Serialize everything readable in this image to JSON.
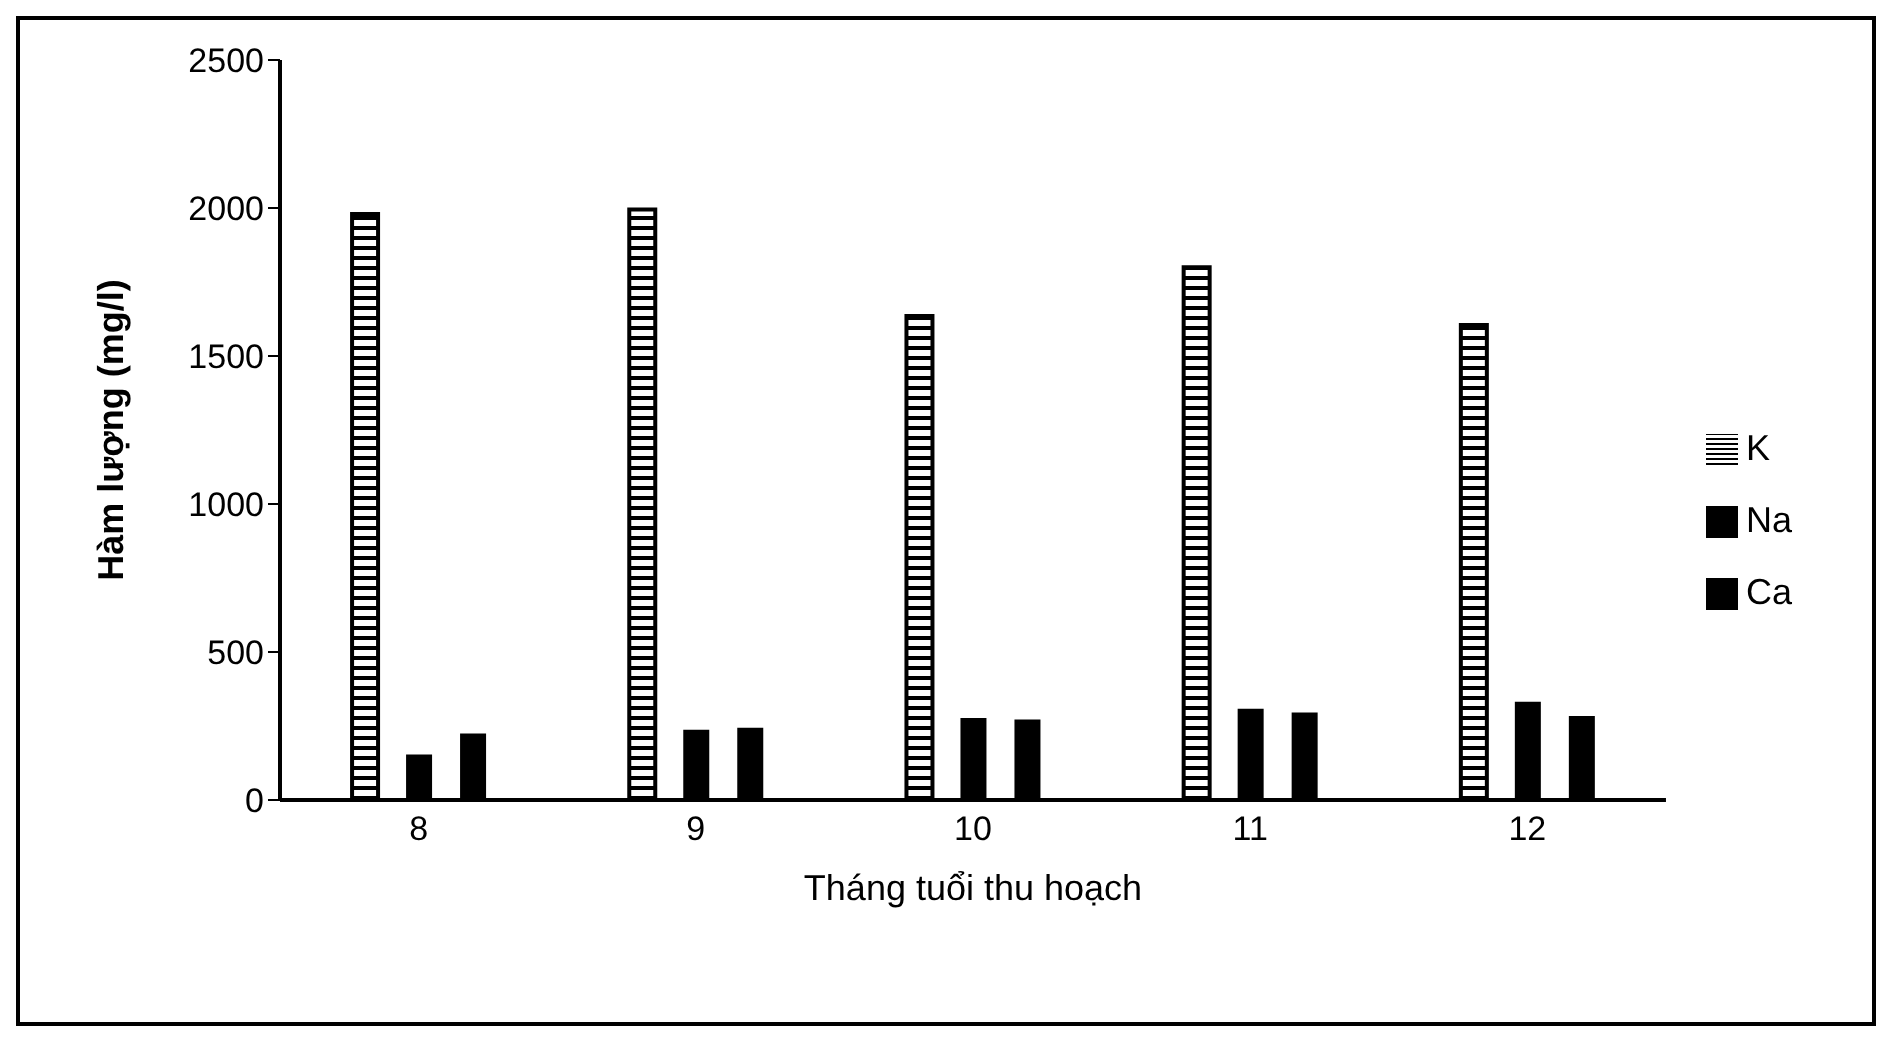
{
  "chart_data": {
    "type": "bar",
    "xlabel": "Tháng tuổi thu hoạch",
    "ylabel": "Hàm lượng (mg/l)",
    "categories": [
      "8",
      "9",
      "10",
      "11",
      "12"
    ],
    "series": [
      {
        "name": "K",
        "color": "#000000",
        "values": [
          1980,
          1995,
          1635,
          1800,
          1605
        ]
      },
      {
        "name": "Na",
        "color": "#000000",
        "values": [
          154,
          237,
          277,
          308,
          332
        ]
      },
      {
        "name": "Ca",
        "color": "#000000",
        "values": [
          225,
          244,
          272,
          296,
          284
        ]
      }
    ],
    "ylim": [
      0,
      2500
    ],
    "yticks": [
      0,
      500,
      1000,
      1500,
      2000,
      2500
    ],
    "grid": false,
    "legend": "right"
  }
}
